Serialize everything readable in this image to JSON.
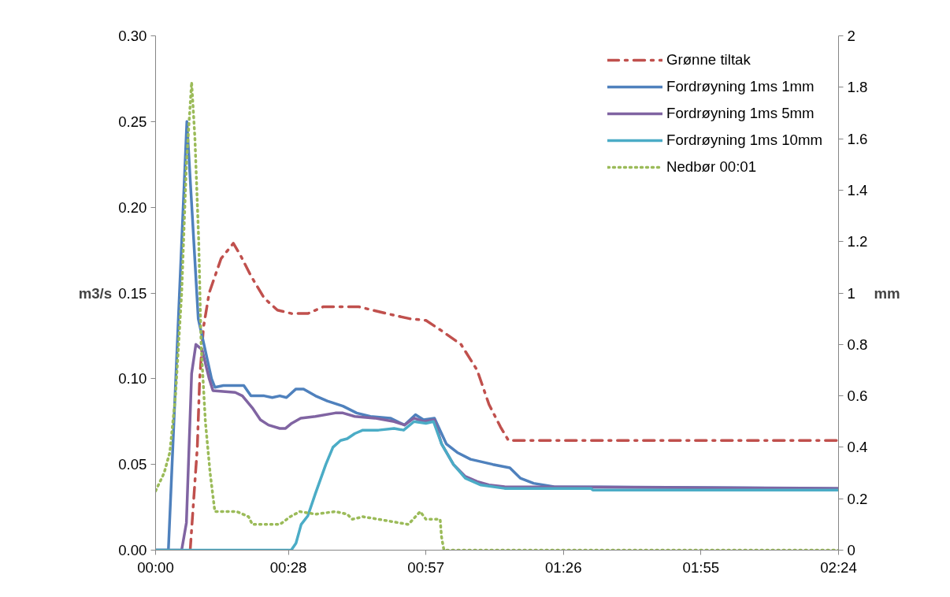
{
  "chart_data": {
    "type": "line",
    "xlabel": null,
    "ylabel": "m3/s",
    "y2label": "mm",
    "xlim": [
      0,
      144
    ],
    "xticks": [
      {
        "value": 0,
        "label": "00:00"
      },
      {
        "value": 28,
        "label": "00:28"
      },
      {
        "value": 57,
        "label": "00:57"
      },
      {
        "value": 86,
        "label": "01:26"
      },
      {
        "value": 115,
        "label": "01:55"
      },
      {
        "value": 144,
        "label": "02:24"
      }
    ],
    "ylim": [
      0,
      0.3
    ],
    "yticks": [
      {
        "value": 0,
        "label": "0.00"
      },
      {
        "value": 0.05,
        "label": "0.05"
      },
      {
        "value": 0.1,
        "label": "0.10"
      },
      {
        "value": 0.15,
        "label": "0.15"
      },
      {
        "value": 0.2,
        "label": "0.20"
      },
      {
        "value": 0.25,
        "label": "0.25"
      },
      {
        "value": 0.3,
        "label": "0.30"
      }
    ],
    "y2lim": [
      0,
      2
    ],
    "y2ticks": [
      0,
      0.2,
      0.4,
      0.6,
      0.8,
      1,
      1.2,
      1.4,
      1.6,
      1.8,
      2
    ],
    "grid": false,
    "legend": "top right",
    "series": [
      {
        "name": "Grønne tiltak",
        "color": "#c0504d",
        "line_style": "dashdot",
        "x": [
          7.3,
          7.8,
          8.8,
          9.3,
          10.1,
          11.3,
          13.8,
          16.4,
          17.9,
          20.1,
          22.9,
          25.7,
          28.7,
          32.1,
          35.4,
          42.8,
          48.7,
          53.6,
          57.0,
          60.3,
          64.4,
          67.8,
          70.3,
          72.7,
          74.4,
          144
        ],
        "values": [
          0,
          0.02,
          0.06,
          0.1,
          0.13,
          0.15,
          0.17,
          0.179,
          0.172,
          0.16,
          0.147,
          0.14,
          0.138,
          0.138,
          0.142,
          0.142,
          0.138,
          0.135,
          0.134,
          0.128,
          0.12,
          0.105,
          0.085,
          0.072,
          0.064,
          0.064
        ]
      },
      {
        "name": "Fordrøyning 1ms 1mm",
        "color": "#4f81bd",
        "line_style": "solid",
        "x": [
          0,
          2.7,
          6.6,
          9.0,
          11.8,
          12.5,
          14.3,
          18.6,
          20.1,
          22.9,
          24.6,
          26.2,
          27.6,
          29.6,
          31.2,
          33.7,
          36.2,
          39.5,
          42.4,
          45.3,
          49.5,
          52.5,
          54.8,
          56.5,
          58.8,
          61.3,
          63.6,
          66.4,
          71.1,
          74.7,
          76.9,
          79.7,
          84.0,
          144
        ],
        "values": [
          0,
          0,
          0.25,
          0.135,
          0.1,
          0.095,
          0.096,
          0.096,
          0.09,
          0.09,
          0.089,
          0.09,
          0.089,
          0.094,
          0.094,
          0.09,
          0.087,
          0.084,
          0.08,
          0.078,
          0.077,
          0.073,
          0.079,
          0.076,
          0.077,
          0.062,
          0.057,
          0.053,
          0.05,
          0.048,
          0.042,
          0.039,
          0.037,
          0.036
        ]
      },
      {
        "name": "Fordrøyning 1ms 5mm",
        "color": "#8064a2",
        "line_style": "solid",
        "x": [
          0,
          5.5,
          6.5,
          7.6,
          8.5,
          9.8,
          11.3,
          12.1,
          16.8,
          18.3,
          20.4,
          22.1,
          23.8,
          26.2,
          27.4,
          28.7,
          30.6,
          33.7,
          37.9,
          39.5,
          42.0,
          46.2,
          50.3,
          52.5,
          54.5,
          56.5,
          58.8,
          60.3,
          62.8,
          65.3,
          67.8,
          70.3,
          73.6,
          144
        ],
        "values": [
          0,
          0,
          0.016,
          0.103,
          0.12,
          0.117,
          0.1,
          0.093,
          0.092,
          0.09,
          0.083,
          0.076,
          0.073,
          0.071,
          0.071,
          0.074,
          0.077,
          0.078,
          0.08,
          0.08,
          0.078,
          0.077,
          0.075,
          0.073,
          0.077,
          0.075,
          0.076,
          0.062,
          0.05,
          0.043,
          0.04,
          0.038,
          0.037,
          0.036
        ]
      },
      {
        "name": "Fordrøyning 1ms 10mm",
        "color": "#4bacc6",
        "line_style": "solid",
        "x": [
          0,
          28.6,
          29.6,
          30.7,
          32.1,
          33.7,
          35.9,
          37.4,
          39.0,
          40.4,
          42.0,
          43.7,
          47.0,
          50.3,
          52.3,
          54.5,
          57.0,
          58.6,
          60.3,
          62.8,
          65.3,
          68.6,
          73.6,
          91.8,
          92.2,
          144
        ],
        "values": [
          0,
          0,
          0.004,
          0.015,
          0.02,
          0.033,
          0.05,
          0.06,
          0.064,
          0.065,
          0.068,
          0.07,
          0.07,
          0.071,
          0.07,
          0.075,
          0.074,
          0.075,
          0.062,
          0.05,
          0.042,
          0.038,
          0.036,
          0.036,
          0.035,
          0.035
        ]
      },
      {
        "name": "Nedbør 00:01",
        "color": "#9bbb59",
        "line_style": "dotted",
        "axis": "y2",
        "x": [
          0,
          1.8,
          3.0,
          4.2,
          5.5,
          6.5,
          7.6,
          8.3,
          9.1,
          9.6,
          10.5,
          11.5,
          12.5,
          17.1,
          19.6,
          20.4,
          26.2,
          28.4,
          30.4,
          33.7,
          37.9,
          40.4,
          41.5,
          43.7,
          47.0,
          53.3,
          55.8,
          57.0,
          60.0,
          60.3,
          60.8,
          144
        ],
        "values": [
          0.23,
          0.3,
          0.38,
          0.6,
          1.0,
          1.5,
          1.82,
          1.6,
          1.2,
          0.8,
          0.5,
          0.3,
          0.15,
          0.15,
          0.13,
          0.1,
          0.1,
          0.13,
          0.15,
          0.14,
          0.15,
          0.14,
          0.12,
          0.13,
          0.12,
          0.1,
          0.15,
          0.12,
          0.12,
          0.05,
          0,
          0
        ]
      }
    ]
  }
}
